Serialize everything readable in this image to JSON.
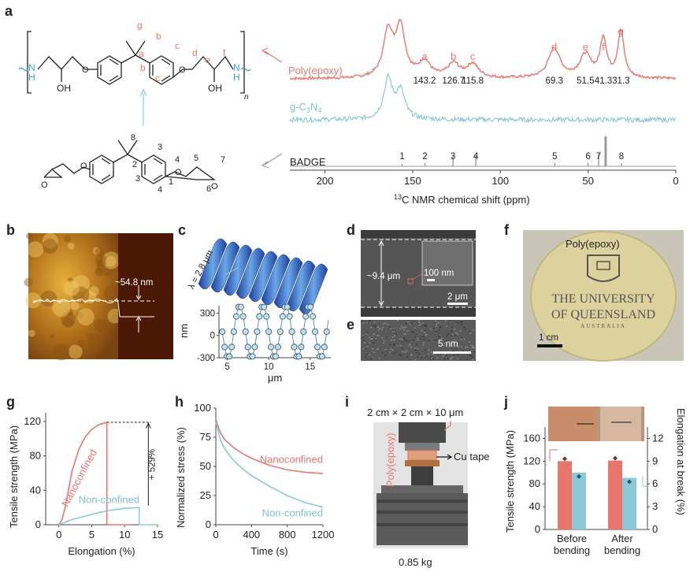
{
  "colors": {
    "red": "#e7766f",
    "blue": "#8dc8d8",
    "gray": "#9a9a9a"
  },
  "panels": {
    "a": {
      "label": "a",
      "chem": {
        "poly_letters": [
          "g",
          "a",
          "b",
          "c",
          "b",
          "c",
          "d",
          "e",
          "f"
        ],
        "badge_numbers": [
          "8",
          "3",
          "4",
          "2",
          "5",
          "7",
          "3",
          "4",
          "1",
          "6"
        ],
        "oh1": "OH",
        "oh2": "OH",
        "nh1": "N",
        "nh1b": "H",
        "nh2": "N",
        "nh2b": "H",
        "sub_n": "n"
      },
      "nmr": {
        "poly_label": "Poly(epoxy)",
        "gcn_label": "g-C",
        "gcn_sub1": "3",
        "gcn_mid": "N",
        "gcn_sub2": "4",
        "badge_label": "BADGE",
        "peak_letters": [
          "a",
          "b",
          "c",
          "d",
          "e",
          "f",
          "g"
        ],
        "shifts": [
          "143.2",
          "126.7",
          "115.8",
          "69.3",
          "51.5",
          "41.3",
          "31.3"
        ],
        "badge_peaks": [
          "1",
          "2",
          "3",
          "4",
          "5",
          "6",
          "7",
          "8"
        ],
        "x_ticks": [
          "200",
          "150",
          "100",
          "50",
          "0"
        ],
        "x_label_sup": "13",
        "x_label": "C NMR chemical shift (ppm)"
      }
    },
    "b": {
      "label": "b",
      "height": "~54.8 nm"
    },
    "c": {
      "label": "c",
      "lambda": "λ = 2.8 μm",
      "y_label": "nm",
      "x_label": "μm",
      "y_ticks": [
        "300",
        "0",
        "-300"
      ],
      "x_ticks": [
        "5",
        "10",
        "15"
      ]
    },
    "d": {
      "label": "d",
      "thickness": "~9.4 μm",
      "inset_scale": "100 nm",
      "scale": "2 μm"
    },
    "e": {
      "label": "e",
      "scale": "5 nm"
    },
    "f": {
      "label": "f",
      "title": "Poly(epoxy)",
      "logo_line1": "THE UNIVERSITY",
      "logo_line2": "OF QUEENSLAND",
      "logo_line3": "AUSTRALIA",
      "scale": "1 cm"
    },
    "g": {
      "label": "g",
      "y_label": "Tensile strength (MPa)",
      "x_label": "Elongation (%)",
      "y_ticks": [
        "120",
        "80",
        "40",
        "0"
      ],
      "x_ticks": [
        "0",
        "5",
        "10",
        "15"
      ],
      "nano": "Nanoconfined",
      "non": "Non-confined",
      "increase": "+ 529%"
    },
    "h": {
      "label": "h",
      "y_label": "Normalized stress (%)",
      "x_label": "Time (s)",
      "y_ticks": [
        "100",
        "75",
        "50",
        "25",
        "0"
      ],
      "x_ticks": [
        "0",
        "400",
        "800",
        "1200"
      ],
      "nano": "Nanoconfined",
      "non": "Non-confined"
    },
    "i": {
      "label": "i",
      "dims": "2 cm × 2 cm × 10 μm",
      "sample": "Poly(epoxy)",
      "tape": "Cu tape",
      "weight": "0.85 kg"
    },
    "j": {
      "label": "j",
      "y_left": "Tensile strength (MPa)",
      "y_right": "Elongation at break (%)",
      "y_left_ticks": [
        "160",
        "120",
        "80",
        "40",
        "0"
      ],
      "y_right_ticks": [
        "12",
        "9",
        "6",
        "3",
        "0"
      ],
      "cat1a": "Before",
      "cat1b": "bending",
      "cat2a": "After",
      "cat2b": "bending"
    }
  },
  "chart_data": [
    {
      "type": "line",
      "title": "",
      "xlabel": "13C NMR chemical shift (ppm)",
      "ylabel": "",
      "xlim": [
        220,
        0
      ],
      "series": [
        {
          "name": "Poly(epoxy)",
          "peaks_ppm": [
            143.2,
            126.7,
            115.8,
            69.3,
            51.5,
            41.3,
            31.3
          ]
        },
        {
          "name": "g-C3N4",
          "peaks_ppm": [
            164,
            157
          ]
        },
        {
          "name": "BADGE",
          "peaks_ppm": [
            156,
            143,
            127,
            114,
            69,
            50,
            44,
            40,
            31
          ]
        }
      ]
    },
    {
      "type": "line",
      "xlabel": "μm",
      "ylabel": "nm",
      "xlim": [
        4,
        17.5
      ],
      "ylim": [
        -300,
        400
      ],
      "series": [
        {
          "name": "height profile",
          "wavelength_um": 2.8,
          "amplitude_nm": 350
        }
      ]
    },
    {
      "type": "line",
      "xlabel": "Elongation (%)",
      "ylabel": "Tensile strength (MPa)",
      "xlim": [
        -2,
        15
      ],
      "ylim": [
        0,
        130
      ],
      "series": [
        {
          "name": "Nanoconfined",
          "x": [
            0,
            0.5,
            1,
            2,
            3,
            4,
            5,
            6,
            7.3,
            7.3,
            11
          ],
          "y": [
            0,
            6,
            22,
            62,
            87,
            102,
            111,
            116,
            119,
            0,
            0
          ]
        },
        {
          "name": "Non-confined",
          "x": [
            0,
            2,
            4,
            6,
            8,
            10,
            12.2,
            12.2,
            15
          ],
          "y": [
            0,
            6,
            10,
            14,
            17,
            19,
            20,
            0,
            0
          ]
        }
      ]
    },
    {
      "type": "line",
      "xlabel": "Time (s)",
      "ylabel": "Normalized stress (%)",
      "xlim": [
        0,
        1200
      ],
      "ylim": [
        0,
        100
      ],
      "series": [
        {
          "name": "Nanoconfined",
          "x": [
            0,
            50,
            100,
            200,
            300,
            400,
            600,
            800,
            1000,
            1200
          ],
          "y": [
            90,
            79,
            73,
            66,
            61,
            57,
            51,
            47,
            45,
            44
          ]
        },
        {
          "name": "Non-confined",
          "x": [
            0,
            50,
            100,
            200,
            300,
            400,
            600,
            800,
            1000,
            1200
          ],
          "y": [
            88,
            73,
            65,
            55,
            48,
            42,
            33,
            25,
            19,
            15
          ]
        }
      ]
    },
    {
      "type": "bar",
      "categories": [
        "Before bending",
        "After bending"
      ],
      "ylabel": "Tensile strength (MPa)",
      "y2label": "Elongation at break (%)",
      "ylim": [
        0,
        180
      ],
      "y2lim": [
        0,
        13.5
      ],
      "series": [
        {
          "name": "Tensile strength (MPa)",
          "values": [
            120,
            121
          ]
        },
        {
          "name": "Elongation at break (%)",
          "values": [
            7.5,
            6.8
          ]
        }
      ]
    }
  ]
}
